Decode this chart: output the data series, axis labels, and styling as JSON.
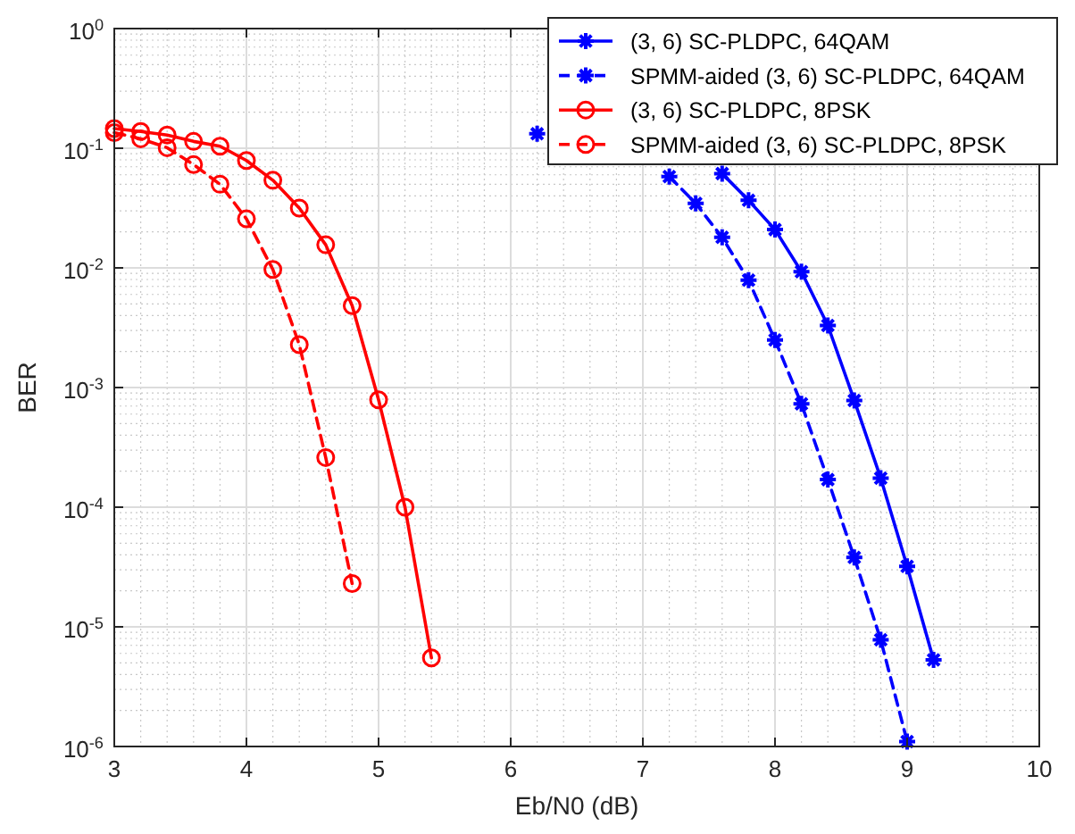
{
  "chart_data": {
    "type": "line",
    "xlabel": "Eb/N0 (dB)",
    "ylabel": "BER",
    "log": "y",
    "grid": true,
    "legend": "top right",
    "xlim": [
      3,
      10
    ],
    "xticks": [
      3,
      4,
      5,
      6,
      7,
      8,
      9,
      10
    ],
    "ylim": [
      1e-06,
      1
    ],
    "yticks": [
      {
        "value": 1e-06,
        "label": "10$^{-6}$"
      },
      {
        "value": 1e-05,
        "label": "10$^{-5}$"
      },
      {
        "value": 0.0001,
        "label": "10$^{-4}$"
      },
      {
        "value": 0.001,
        "label": "10$^{-3}$"
      },
      {
        "value": 0.01,
        "label": "10$^{-2}$"
      },
      {
        "value": 0.1,
        "label": "10$^{-1}$"
      },
      {
        "value": 1,
        "label": "10$^{0}$"
      }
    ],
    "series": [
      {
        "name": "(3, 6) SC-PLDPC, 64QAM",
        "color": "#0000ff",
        "marker": "cross",
        "line_style": "solid",
        "x": [
          6.2,
          6.4,
          6.6,
          6.8,
          7.0,
          7.2,
          7.4,
          7.6,
          7.8,
          8.0,
          8.2,
          8.4,
          8.6,
          8.8,
          9.0,
          9.2
        ],
        "values": [
          0.132,
          null,
          null,
          null,
          null,
          null,
          null,
          0.0614,
          0.0367,
          0.0209,
          0.0093,
          0.0033,
          0.00078,
          0.000175,
          3.2e-05,
          5.3e-06
        ]
      },
      {
        "name": "SPMM-aided (3, 6) SC-PLDPC, 64QAM",
        "color": "#0000ff",
        "marker": "cross",
        "line_style": "dashed",
        "x": [
          7.2,
          7.4,
          7.6,
          7.8,
          8.0,
          8.2,
          8.4,
          8.6,
          8.8,
          9.0
        ],
        "values": [
          0.058,
          0.0346,
          0.018,
          0.0079,
          0.0025,
          0.00073,
          0.00017,
          3.8e-05,
          7.8e-06,
          1.1e-06
        ]
      },
      {
        "name": "(3, 6) SC-PLDPC, 8PSK",
        "color": "#ff0000",
        "marker": "circle",
        "line_style": "solid",
        "x": [
          3.0,
          3.2,
          3.4,
          3.6,
          3.8,
          4.0,
          4.2,
          4.4,
          4.6,
          4.8,
          5.0,
          5.2,
          5.4
        ],
        "values": [
          0.146,
          0.138,
          0.129,
          0.114,
          0.104,
          0.079,
          0.054,
          0.0316,
          0.0156,
          0.00484,
          0.00079,
          0.0001,
          5.5e-06
        ]
      },
      {
        "name": "SPMM-aided (3, 6) SC-PLDPC, 8PSK",
        "color": "#ff0000",
        "marker": "circle",
        "line_style": "dashed",
        "x": [
          3.0,
          3.2,
          3.4,
          3.6,
          3.8,
          4.0,
          4.2,
          4.4,
          4.6,
          4.8
        ],
        "values": [
          0.135,
          0.12,
          0.101,
          0.073,
          0.05,
          0.0257,
          0.0097,
          0.00228,
          0.00026,
          2.3e-05
        ]
      }
    ]
  }
}
